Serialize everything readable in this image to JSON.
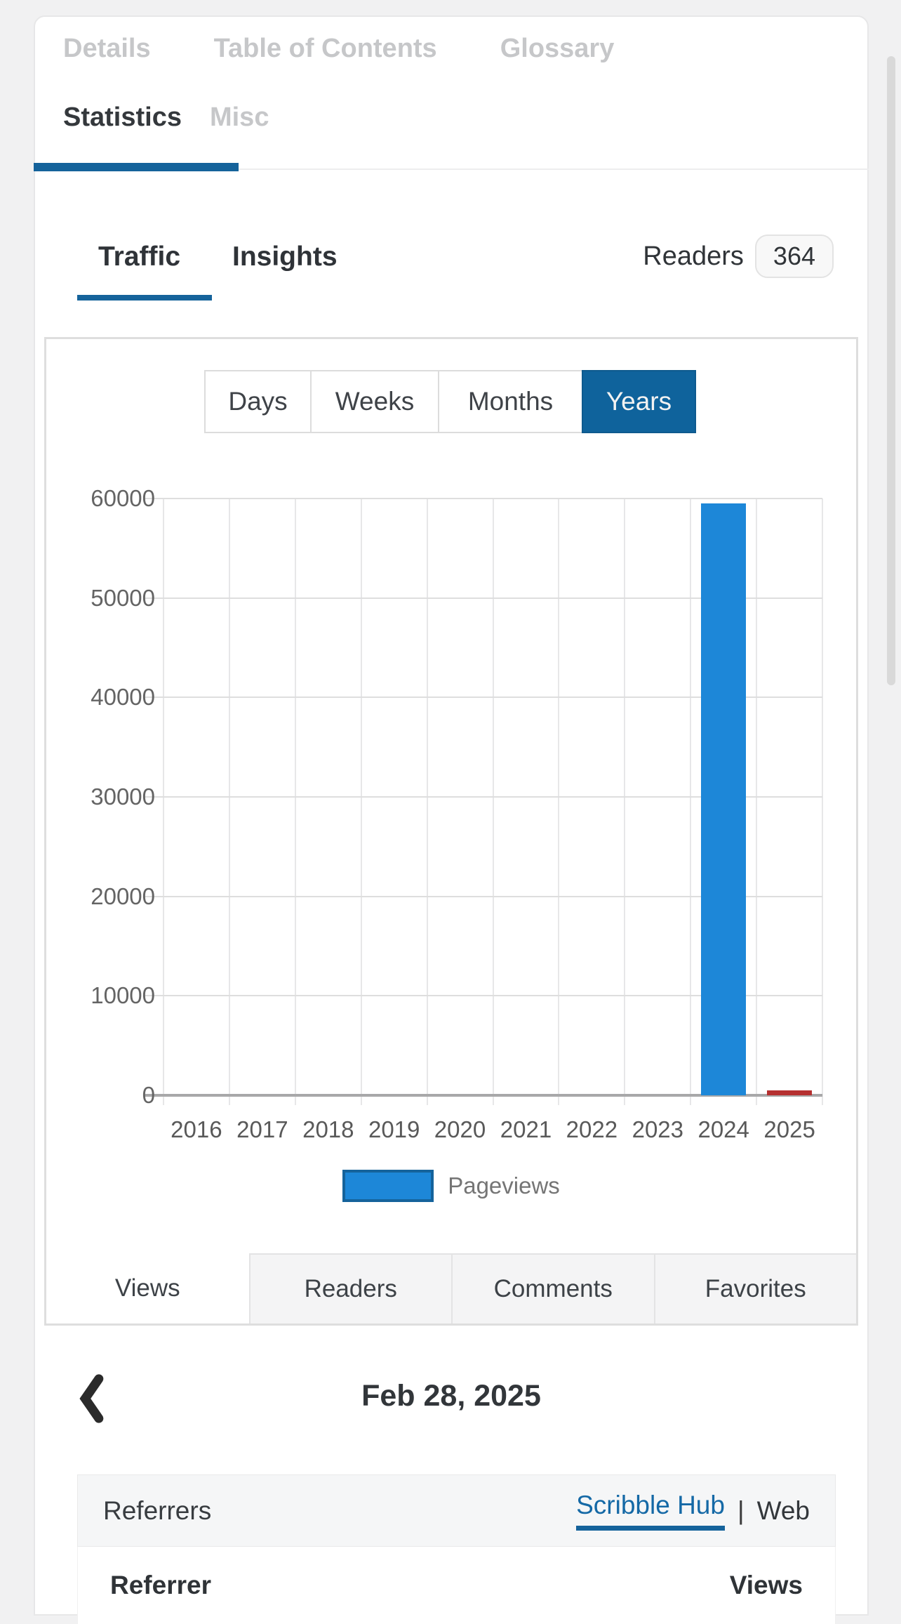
{
  "top_tabs": {
    "items": [
      {
        "label": "Details"
      },
      {
        "label": "Table of Contents"
      },
      {
        "label": "Glossary"
      }
    ]
  },
  "secondary_tabs": {
    "items": [
      {
        "label": "Statistics",
        "active": true
      },
      {
        "label": "Misc",
        "active": false
      }
    ]
  },
  "stats_header": {
    "tabs": [
      {
        "label": "Traffic",
        "active": true
      },
      {
        "label": "Insights",
        "active": false
      }
    ],
    "readers_label": "Readers",
    "readers_count": "364"
  },
  "period_buttons": {
    "items": [
      {
        "label": "Days"
      },
      {
        "label": "Weeks"
      },
      {
        "label": "Months"
      },
      {
        "label": "Years",
        "active": true
      }
    ]
  },
  "chart_data": {
    "type": "bar",
    "title": "",
    "categories": [
      "2016",
      "2017",
      "2018",
      "2019",
      "2020",
      "2021",
      "2022",
      "2023",
      "2024",
      "2025"
    ],
    "series": [
      {
        "name": "Pageviews",
        "color": "#1d87d8",
        "border_color": "#15639b",
        "values": [
          0,
          0,
          0,
          0,
          0,
          0,
          0,
          0,
          59500,
          500
        ]
      }
    ],
    "bar_colors": [
      "#1d87d8",
      "#1d87d8",
      "#1d87d8",
      "#1d87d8",
      "#1d87d8",
      "#1d87d8",
      "#1d87d8",
      "#1d87d8",
      "#1d87d8",
      "#b53030"
    ],
    "ylim": [
      0,
      60000
    ],
    "ytick_step": 10000,
    "ytick_labels": [
      "0",
      "10000",
      "20000",
      "30000",
      "40000",
      "50000",
      "60000"
    ],
    "grid": true,
    "legend_position": "bottom",
    "legend": [
      {
        "label": "Pageviews",
        "color": "#1d87d8"
      }
    ]
  },
  "metric_tabs": {
    "items": [
      {
        "label": "Views",
        "active": true
      },
      {
        "label": "Readers"
      },
      {
        "label": "Comments"
      },
      {
        "label": "Favorites"
      }
    ]
  },
  "date_nav": {
    "prev_icon": "chevron-left",
    "date": "Feb 28, 2025"
  },
  "referrers": {
    "title": "Referrers",
    "links": [
      {
        "label": "Scribble Hub",
        "active": true
      },
      {
        "label": "Web",
        "active": false
      }
    ],
    "separator": "|",
    "columns": [
      "Referrer",
      "Views"
    ]
  },
  "colors": {
    "accent_blue": "#15639b",
    "bar_blue": "#1d87d8",
    "bar_red": "#b53030",
    "page_bg": "#f1f1f2"
  }
}
